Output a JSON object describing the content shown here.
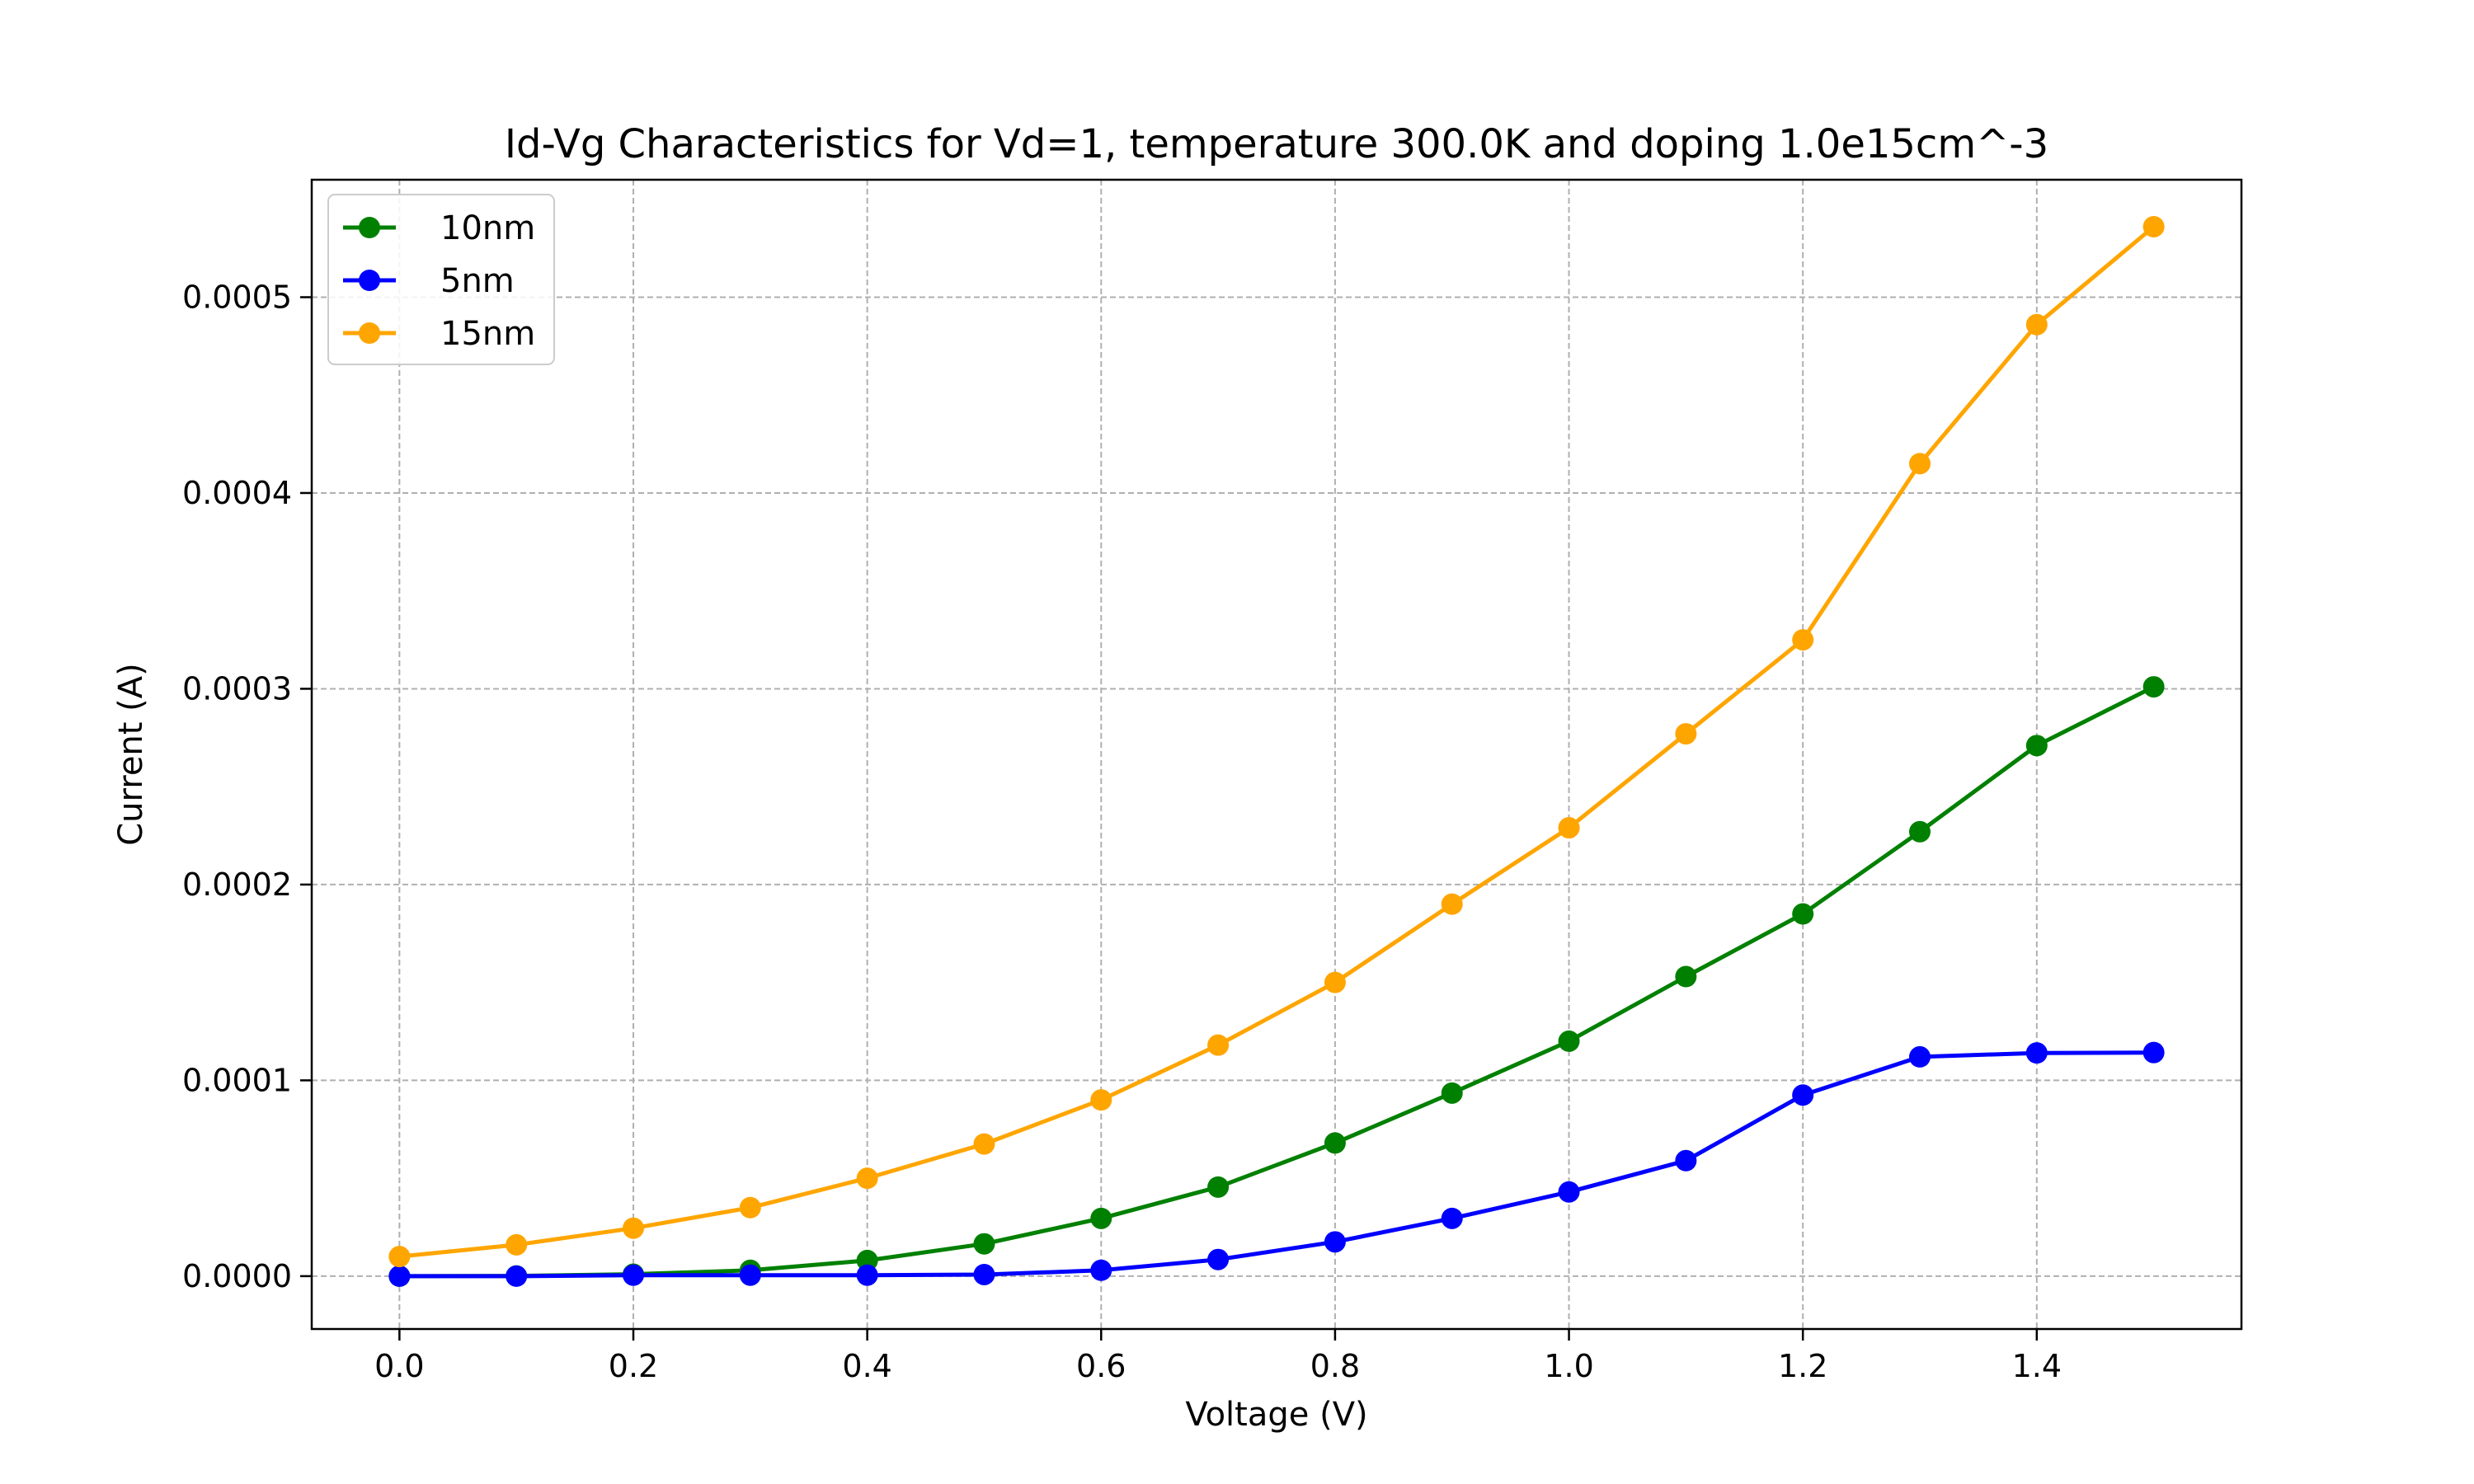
{
  "chart_data": {
    "type": "line",
    "title": "Id-Vg Characteristics for Vd=1, temperature 300.0K and doping 1.0e15cm^-3",
    "xlabel": "Voltage (V)",
    "ylabel": "Current (A)",
    "x": [
      0.0,
      0.1,
      0.2,
      0.3,
      0.4,
      0.5,
      0.6,
      0.7,
      0.8,
      0.9,
      1.0,
      1.1,
      1.2,
      1.3,
      1.4,
      1.5
    ],
    "xlim": [
      -0.075,
      1.575
    ],
    "ylim": [
      -2.7e-05,
      0.00056
    ],
    "xticks": [
      "0.0",
      "0.2",
      "0.4",
      "0.6",
      "0.8",
      "1.0",
      "1.2",
      "1.4"
    ],
    "xtick_values": [
      0.0,
      0.2,
      0.4,
      0.6,
      0.8,
      1.0,
      1.2,
      1.4
    ],
    "yticks": [
      "0.0000",
      "0.0001",
      "0.0002",
      "0.0003",
      "0.0004",
      "0.0005"
    ],
    "ytick_values": [
      0.0,
      0.0001,
      0.0002,
      0.0003,
      0.0004,
      0.0005
    ],
    "grid": true,
    "legend_position": "top-left",
    "series": [
      {
        "name": "10nm",
        "color": "#008000",
        "values": [
          0.0,
          1e-07,
          1e-06,
          3e-06,
          8e-06,
          1.65e-05,
          2.95e-05,
          4.55e-05,
          6.8e-05,
          9.35e-05,
          0.00012,
          0.000153,
          0.000185,
          0.000227,
          0.000271,
          0.000301
        ]
      },
      {
        "name": "5nm",
        "color": "#0000ff",
        "values": [
          0.0,
          0.0,
          5e-07,
          5e-07,
          5e-07,
          8e-07,
          3e-06,
          8.5e-06,
          1.75e-05,
          2.95e-05,
          4.3e-05,
          5.9e-05,
          9.25e-05,
          0.000112,
          0.000114,
          0.0001142
        ]
      },
      {
        "name": "15nm",
        "color": "#ffa500",
        "values": [
          1e-05,
          1.6e-05,
          2.45e-05,
          3.5e-05,
          5e-05,
          6.75e-05,
          9e-05,
          0.000118,
          0.00015,
          0.00019,
          0.000229,
          0.000277,
          0.000325,
          0.000415,
          0.000486,
          0.000536
        ]
      }
    ]
  }
}
